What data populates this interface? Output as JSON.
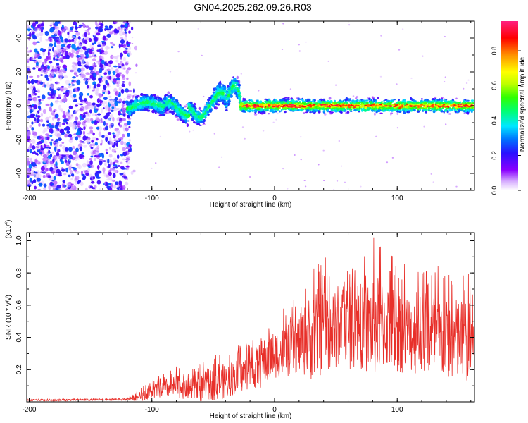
{
  "title": "GN04.2025.262.09.26.R03",
  "chart_data": [
    {
      "type": "heatmap",
      "name": "spectrogram",
      "xlabel": "Height of straight line (km)",
      "ylabel": "Frequency (Hz)",
      "xlim": [
        -202,
        163
      ],
      "ylim": [
        -50,
        50
      ],
      "x_ticks": [
        -200,
        -100,
        0,
        100
      ],
      "x_tick_labels": [
        "-200",
        "-100",
        "0",
        "100"
      ],
      "y_ticks": [
        -40,
        -20,
        0,
        20,
        40
      ],
      "y_tick_labels": [
        "-40",
        "-20",
        "0",
        "20",
        "40"
      ],
      "colorbar": {
        "label": "Normalized spectral amplitude",
        "range": [
          0,
          0.97
        ],
        "ticks": [
          0.0,
          0.2,
          0.4,
          0.6,
          0.8
        ],
        "tick_labels": [
          "0.0",
          "0.2",
          "0.4",
          "0.6",
          "0.8"
        ],
        "colors": [
          "#ffffff",
          "#b366ff",
          "#7a00ff",
          "#2030ff",
          "#00e0ff",
          "#00ff60",
          "#c0ff00",
          "#ffff00",
          "#ff8000",
          "#ff0000",
          "#ff1a80"
        ]
      },
      "regions": [
        {
          "x_range": [
            -202,
            -120
          ],
          "description_values": "broadband noise, amplitude 0.05-0.4 across all frequencies"
        },
        {
          "x_range": [
            -120,
            -28
          ],
          "center_freq_hz": [
            0,
            2,
            -4,
            6,
            -2,
            8,
            14
          ],
          "amplitude": [
            0.3,
            0.5
          ]
        },
        {
          "x_range": [
            -28,
            163
          ],
          "center_freq_hz": 0,
          "amplitude": [
            0.6,
            0.97
          ]
        }
      ]
    },
    {
      "type": "line",
      "name": "snr",
      "xlabel": "Height of straight line (km)",
      "ylabel": "SNR (10 * v/v)",
      "y_scale_label": "(x10",
      "y_scale_exp": "4",
      "y_scale_close": ")",
      "xlim": [
        -202,
        163
      ],
      "ylim": [
        0,
        1.05
      ],
      "x_ticks": [
        -200,
        -100,
        0,
        100
      ],
      "x_tick_labels": [
        "-200",
        "-100",
        "0",
        "100"
      ],
      "y_ticks": [
        0.2,
        0.4,
        0.6,
        0.8,
        1.0
      ],
      "y_tick_labels": [
        "0.2",
        "0.4",
        "0.6",
        "0.8",
        "1.0"
      ],
      "color": "#e8302a",
      "envelope": {
        "x": [
          -202,
          -120,
          -110,
          -100,
          -80,
          -60,
          -40,
          -30,
          -20,
          -10,
          0,
          10,
          20,
          30,
          40,
          50,
          60,
          70,
          80,
          90,
          100,
          110,
          120,
          130,
          140,
          150,
          163
        ],
        "mean": [
          0.01,
          0.015,
          0.03,
          0.06,
          0.09,
          0.08,
          0.12,
          0.15,
          0.18,
          0.22,
          0.28,
          0.3,
          0.34,
          0.38,
          0.42,
          0.42,
          0.42,
          0.43,
          0.44,
          0.45,
          0.42,
          0.4,
          0.38,
          0.37,
          0.36,
          0.35,
          0.34
        ],
        "peak": [
          0.02,
          0.03,
          0.08,
          0.14,
          0.22,
          0.25,
          0.32,
          0.35,
          0.38,
          0.5,
          0.55,
          0.6,
          0.66,
          0.88,
          0.93,
          0.85,
          0.86,
          0.88,
          1.03,
          0.95,
          0.9,
          0.85,
          0.82,
          0.88,
          0.8,
          0.85,
          0.78
        ]
      }
    }
  ]
}
